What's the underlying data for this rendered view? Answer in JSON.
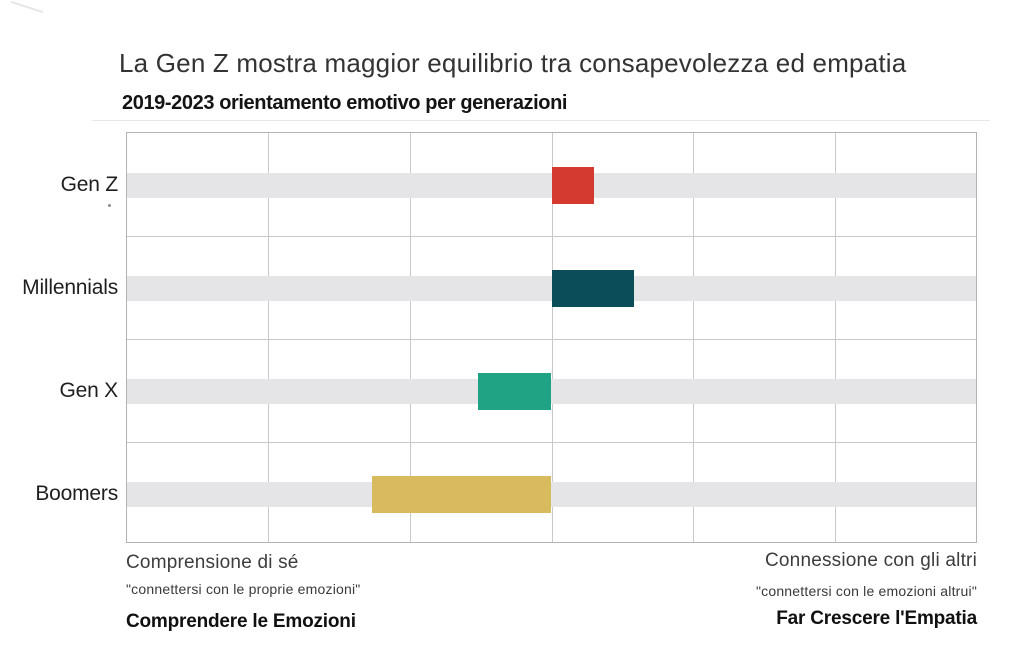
{
  "chart_data": {
    "type": "bar",
    "subtype": "diverging-range",
    "orientation": "horizontal",
    "title": "La Gen Z mostra maggior equilibrio tra consapevolezza ed empatia",
    "subtitle": "2019-2023 orientamento emotivo per generazioni",
    "categories": [
      "Gen Z",
      "Millennials",
      "Gen X",
      "Boomers"
    ],
    "series": [
      {
        "name": "Gen Z",
        "range": [
          0,
          0.3
        ],
        "color": "#d53a2f"
      },
      {
        "name": "Millennials",
        "range": [
          0,
          0.58
        ],
        "color": "#0b4e5a"
      },
      {
        "name": "Gen X",
        "range": [
          -0.52,
          0
        ],
        "color": "#20a385"
      },
      {
        "name": "Boomers",
        "range": [
          -1.27,
          0
        ],
        "color": "#d8ba5f"
      }
    ],
    "xlim": [
      -3,
      3
    ],
    "x_gridline_step": 1,
    "center_value": 0,
    "grid": "on",
    "legend": "none",
    "tick_labels": "none",
    "axis_ends": {
      "left": {
        "heading": "Comprensione di sé",
        "quote": "\"connettersi con le proprie emozioni\"",
        "label": "Comprendere le Emozioni"
      },
      "right": {
        "heading": "Connessione con gli altri",
        "quote": "\"connettersi con le emozioni altrui\"",
        "label": "Far Crescere l'Empatia"
      }
    },
    "colors": {
      "row_band": "#e5e5e7",
      "gridline": "#c9c9c9",
      "plot_border": "#b3b3b3",
      "background": "#ffffff"
    }
  }
}
